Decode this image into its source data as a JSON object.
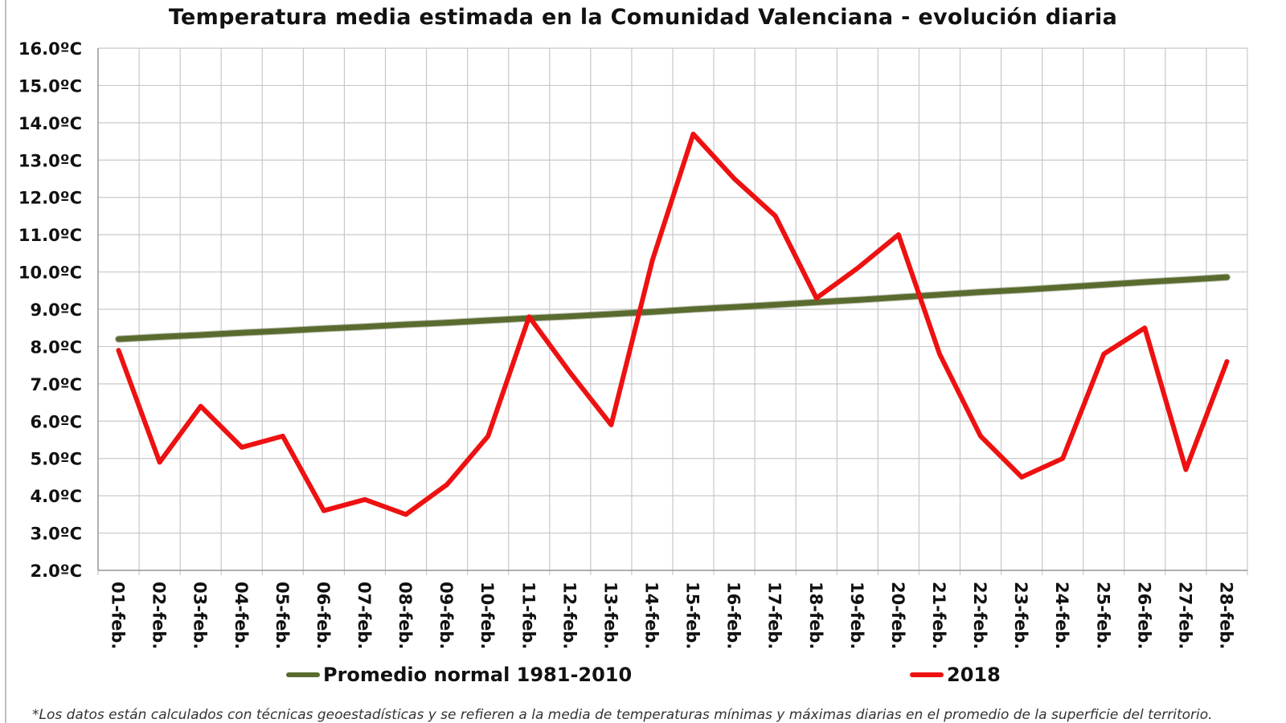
{
  "chart_data": {
    "type": "line",
    "title": "Temperatura media estimada en la Comunidad Valenciana - evolución diaria",
    "xlabel": "",
    "ylabel": "",
    "ylim": [
      2,
      16
    ],
    "y_ticks": [
      "2.0ºC",
      "3.0ºC",
      "4.0ºC",
      "5.0ºC",
      "6.0ºC",
      "7.0ºC",
      "8.0ºC",
      "9.0ºC",
      "10.0ºC",
      "11.0ºC",
      "12.0ºC",
      "13.0ºC",
      "14.0ºC",
      "15.0ºC",
      "16.0ºC"
    ],
    "categories": [
      "01-feb.",
      "02-feb.",
      "03-feb.",
      "04-feb.",
      "05-feb.",
      "06-feb.",
      "07-feb.",
      "08-feb.",
      "09-feb.",
      "10-feb.",
      "11-feb.",
      "12-feb.",
      "13-feb.",
      "14-feb.",
      "15-feb.",
      "16-feb.",
      "17-feb.",
      "18-feb.",
      "19-feb.",
      "20-feb.",
      "21-feb.",
      "22-feb.",
      "23-feb.",
      "24-feb.",
      "25-feb.",
      "26-feb.",
      "27-feb.",
      "28-feb."
    ],
    "series": [
      {
        "name": "Promedio normal 1981-2010",
        "color": "#5a6b2f",
        "values": [
          8.2,
          8.26,
          8.31,
          8.37,
          8.42,
          8.48,
          8.53,
          8.59,
          8.64,
          8.7,
          8.76,
          8.81,
          8.87,
          8.93,
          9.0,
          9.06,
          9.12,
          9.19,
          9.25,
          9.32,
          9.39,
          9.46,
          9.52,
          9.59,
          9.66,
          9.73,
          9.79,
          9.86
        ]
      },
      {
        "name": "2018",
        "color": "#ee1111",
        "values": [
          7.9,
          4.9,
          6.4,
          5.3,
          5.6,
          3.6,
          3.9,
          3.5,
          4.3,
          5.6,
          8.8,
          7.3,
          5.9,
          10.3,
          13.7,
          12.5,
          11.5,
          9.3,
          10.1,
          11.0,
          7.8,
          5.6,
          4.5,
          5.0,
          7.8,
          8.5,
          4.7,
          7.6
        ]
      }
    ],
    "grid": true,
    "legend_position": "bottom",
    "footnote": "*Los datos están calculados con técnicas geoestadísticas y se refieren a la media de temperaturas mínimas y máximas diarias en el promedio de la superficie del territorio."
  }
}
